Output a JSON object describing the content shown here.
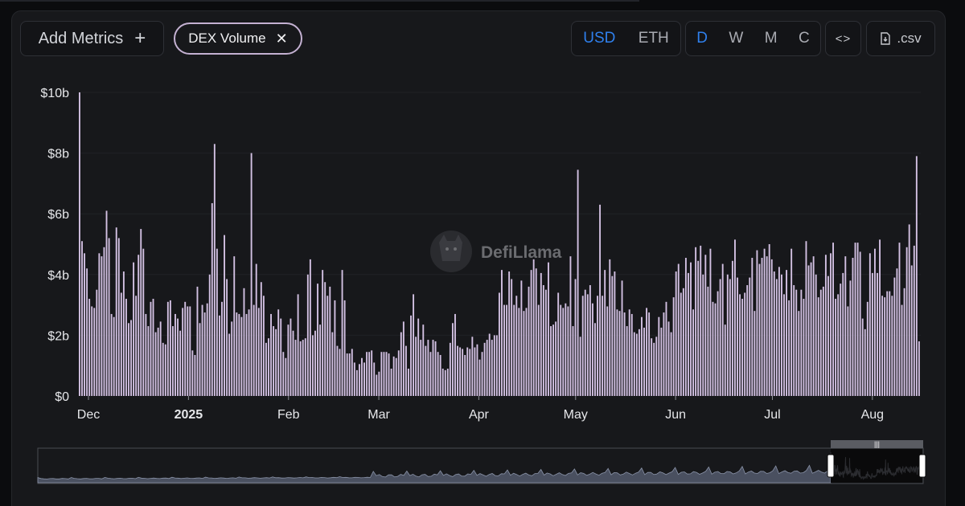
{
  "toolbar": {
    "add_metrics_label": "Add Metrics",
    "chip_label": "DEX Volume",
    "currency_options": [
      "USD",
      "ETH"
    ],
    "currency_selected": "USD",
    "period_options": [
      "D",
      "W",
      "M",
      "C"
    ],
    "period_selected": "D",
    "embed_label": "<>",
    "csv_label": ".csv"
  },
  "watermark": "DefiLlama",
  "colors": {
    "bar": "#d3c1e3",
    "accent": "#2f80ed",
    "chip_border": "#c4b1d2",
    "background": "#17181b"
  },
  "chart_data": {
    "type": "bar",
    "series": [
      {
        "name": "DEX Volume",
        "color": "#d3c1e3"
      }
    ],
    "y_ticks": [
      "$0",
      "$2b",
      "$4b",
      "$6b",
      "$8b",
      "$10b"
    ],
    "ylim": [
      0,
      10
    ],
    "y_unit": "billion USD",
    "x_ticks": [
      {
        "label": "Dec",
        "day": 3,
        "bold": false
      },
      {
        "label": "2025",
        "day": 34,
        "bold": true
      },
      {
        "label": "Feb",
        "day": 65,
        "bold": false
      },
      {
        "label": "Mar",
        "day": 93,
        "bold": false
      },
      {
        "label": "Apr",
        "day": 124,
        "bold": false
      },
      {
        "label": "May",
        "day": 154,
        "bold": false
      },
      {
        "label": "Jun",
        "day": 185,
        "bold": false
      },
      {
        "label": "Jul",
        "day": 215,
        "bold": false
      },
      {
        "label": "Aug",
        "day": 246,
        "bold": false
      }
    ],
    "x_range_days": [
      0,
      261
    ],
    "values": [
      10.0,
      5.1,
      4.7,
      4.2,
      3.2,
      2.95,
      2.9,
      3.5,
      4.7,
      4.6,
      4.9,
      6.1,
      5.2,
      2.7,
      2.6,
      5.55,
      5.2,
      3.4,
      4.1,
      3.2,
      2.4,
      2.5,
      4.4,
      3.3,
      4.65,
      5.5,
      4.85,
      2.7,
      2.3,
      3.1,
      3.2,
      2.1,
      2.25,
      2.45,
      1.75,
      1.7,
      3.1,
      3.15,
      2.3,
      2.7,
      2.55,
      2.15,
      2.9,
      3.1,
      2.95,
      2.95,
      1.5,
      1.35,
      3.6,
      2.4,
      3.0,
      2.75,
      3.05,
      4.0,
      6.35,
      8.3,
      4.85,
      2.65,
      3.1,
      5.3,
      3.85,
      2.05,
      2.45,
      4.6,
      2.75,
      2.7,
      2.6,
      3.55,
      2.7,
      2.85,
      8.0,
      3.0,
      4.35,
      2.9,
      3.75,
      3.3,
      1.75,
      1.9,
      2.7,
      2.3,
      2.2,
      2.85,
      2.55,
      1.45,
      1.25,
      2.35,
      2.55,
      2.15,
      1.85,
      3.35,
      1.8,
      1.85,
      1.9,
      4.0,
      4.5,
      2.0,
      2.15,
      3.7,
      2.35,
      4.15,
      3.75,
      3.3,
      3.6,
      2.1,
      3.15,
      1.65,
      1.55,
      4.15,
      3.15,
      1.4,
      1.4,
      1.55,
      1.1,
      0.85,
      1.05,
      1.25,
      1.1,
      1.45,
      1.45,
      1.5,
      1.1,
      0.7,
      0.8,
      1.45,
      1.45,
      1.45,
      1.4,
      0.9,
      1.3,
      1.25,
      1.5,
      2.1,
      2.45,
      1.65,
      0.9,
      2.65,
      3.35,
      1.95,
      2.55,
      1.85,
      2.35,
      1.65,
      1.85,
      1.45,
      1.85,
      1.8,
      1.45,
      1.35,
      0.9,
      0.85,
      0.9,
      1.75,
      2.4,
      2.7,
      1.65,
      1.6,
      1.55,
      1.35,
      1.6,
      1.55,
      1.95,
      1.6,
      1.7,
      1.2,
      1.45,
      1.75,
      1.85,
      2.05,
      1.85,
      2.0,
      2.0,
      3.4,
      4.15,
      3.0,
      3.0,
      4.1,
      3.85,
      3.0,
      3.3,
      2.9,
      3.8,
      2.8,
      2.9,
      3.6,
      4.15,
      4.5,
      4.2,
      3.0,
      4.05,
      3.65,
      3.5,
      4.4,
      2.3,
      2.35,
      2.45,
      3.4,
      3.0,
      2.9,
      3.05,
      2.95,
      4.6,
      2.3,
      3.85,
      7.45,
      1.95,
      3.3,
      3.5,
      3.35,
      3.65,
      3.05,
      2.4,
      3.3,
      6.3,
      3.3,
      4.15,
      2.95,
      4.5,
      3.95,
      4.1,
      2.85,
      2.8,
      3.8,
      2.75,
      2.3,
      2.85,
      2.7,
      2.1,
      2.05,
      2.2,
      2.6,
      2.25,
      2.9,
      2.75,
      1.9,
      1.75,
      1.95,
      2.6,
      2.25,
      2.75,
      3.1,
      2.45,
      2.1,
      3.25,
      4.1,
      4.35,
      3.4,
      3.55,
      4.55,
      4.05,
      4.4,
      2.85,
      4.9,
      4.45,
      4.95,
      4.0,
      4.65,
      3.6,
      4.85,
      3.1,
      3.05,
      3.45,
      3.85,
      4.35,
      2.35,
      4.0,
      3.85,
      4.45,
      5.15,
      3.9,
      3.35,
      3.2,
      3.4,
      3.65,
      3.9,
      4.55,
      2.8,
      4.8,
      4.35,
      4.55,
      4.85,
      4.6,
      5.0,
      4.5,
      4.1,
      3.85,
      4.25,
      4.0,
      3.35,
      4.15,
      3.15,
      4.85,
      3.65,
      3.5,
      2.8,
      3.5,
      3.2,
      5.1,
      4.3,
      4.4,
      4.6,
      4.0,
      3.25,
      3.5,
      3.6,
      4.65,
      3.95,
      4.7,
      5.05,
      3.2,
      3.35,
      3.7,
      4.05,
      4.6,
      2.95,
      3.8,
      4.55,
      5.05,
      5.05,
      4.75,
      2.55,
      2.2,
      3.1,
      4.7,
      4.05,
      4.85,
      4.05,
      5.15,
      3.3,
      3.25,
      3.45,
      3.45,
      3.3,
      3.9,
      4.2,
      5.05,
      3.0,
      3.55,
      4.9,
      5.65,
      4.3,
      4.95,
      7.9,
      1.8
    ]
  }
}
